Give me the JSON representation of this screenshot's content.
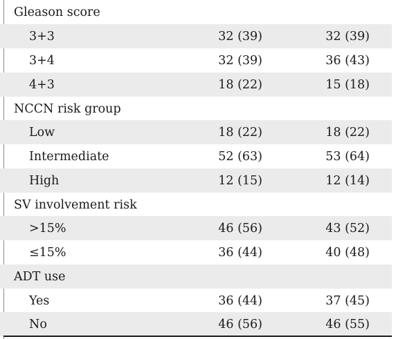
{
  "rows": [
    {
      "label": "Gleason score",
      "kind": "section",
      "shade": false,
      "v1": "",
      "v2": ""
    },
    {
      "label": "3+3",
      "kind": "sub",
      "shade": true,
      "v1": "32 (39)",
      "v2": "32 (39)"
    },
    {
      "label": "3+4",
      "kind": "sub",
      "shade": false,
      "v1": "32 (39)",
      "v2": "36 (43)"
    },
    {
      "label": "4+3",
      "kind": "sub",
      "shade": true,
      "v1": "18 (22)",
      "v2": "15 (18)"
    },
    {
      "label": "NCCN risk group",
      "kind": "section",
      "shade": false,
      "v1": "",
      "v2": ""
    },
    {
      "label": "Low",
      "kind": "sub",
      "shade": true,
      "v1": "18 (22)",
      "v2": "18 (22)"
    },
    {
      "label": "Intermediate",
      "kind": "sub",
      "shade": false,
      "v1": "52 (63)",
      "v2": "53 (64)"
    },
    {
      "label": "High",
      "kind": "sub",
      "shade": true,
      "v1": "12 (15)",
      "v2": "12 (14)"
    },
    {
      "label": "SV involvement risk",
      "kind": "section",
      "shade": false,
      "v1": "",
      "v2": ""
    },
    {
      "label": ">15%",
      "kind": "sub",
      "shade": true,
      "v1": "46 (56)",
      "v2": "43 (52)"
    },
    {
      "label": "≤15%",
      "kind": "sub",
      "shade": false,
      "v1": "36 (44)",
      "v2": "40 (48)"
    },
    {
      "label": "ADT use",
      "kind": "section",
      "shade": true,
      "v1": "",
      "v2": ""
    },
    {
      "label": "Yes",
      "kind": "sub",
      "shade": false,
      "v1": "36 (44)",
      "v2": "37 (45)"
    },
    {
      "label": "No",
      "kind": "sub",
      "shade": true,
      "v1": "46 (56)",
      "v2": "46 (55)"
    }
  ]
}
